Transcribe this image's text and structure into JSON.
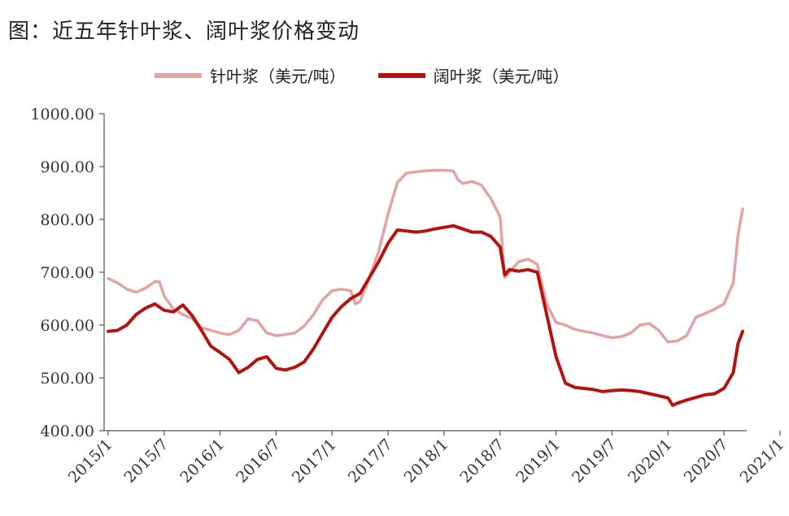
{
  "figure": {
    "title": "图：近五年针叶浆、阔叶浆价格变动"
  },
  "chart_data": {
    "type": "line",
    "title": "图：近五年针叶浆、阔叶浆价格变动",
    "xlabel": "",
    "ylabel": "",
    "ylim": [
      400,
      1000
    ],
    "yticks": [
      "400.00",
      "500.00",
      "600.00",
      "700.00",
      "800.00",
      "900.00",
      "1000.00"
    ],
    "xticks": [
      "2015/1",
      "2015/7",
      "2016/1",
      "2016/7",
      "2017/1",
      "2017/7",
      "2018/1",
      "2018/7",
      "2019/1",
      "2019/7",
      "2020/1",
      "2020/7",
      "2021/1"
    ],
    "legend_position": "top",
    "grid": false,
    "series": [
      {
        "name": "针叶浆（美元/吨）",
        "color": "#e2a3a3",
        "points": [
          [
            0,
            688
          ],
          [
            1,
            680
          ],
          [
            2,
            668
          ],
          [
            3,
            662
          ],
          [
            4,
            670
          ],
          [
            5,
            682
          ],
          [
            5.5,
            682
          ],
          [
            6,
            655
          ],
          [
            7,
            630
          ],
          [
            8,
            620
          ],
          [
            9,
            612
          ],
          [
            10,
            595
          ],
          [
            11,
            590
          ],
          [
            12,
            585
          ],
          [
            13,
            582
          ],
          [
            14,
            590
          ],
          [
            15,
            612
          ],
          [
            16,
            608
          ],
          [
            17,
            585
          ],
          [
            18,
            580
          ],
          [
            19,
            582
          ],
          [
            20,
            585
          ],
          [
            21,
            598
          ],
          [
            22,
            620
          ],
          [
            23,
            648
          ],
          [
            24,
            665
          ],
          [
            25,
            668
          ],
          [
            26,
            665
          ],
          [
            26.5,
            640
          ],
          [
            27,
            645
          ],
          [
            28,
            690
          ],
          [
            29,
            740
          ],
          [
            30,
            810
          ],
          [
            31,
            870
          ],
          [
            32,
            888
          ],
          [
            33,
            890
          ],
          [
            34,
            892
          ],
          [
            35,
            893
          ],
          [
            36,
            893
          ],
          [
            37,
            892
          ],
          [
            37.5,
            875
          ],
          [
            38,
            868
          ],
          [
            39,
            872
          ],
          [
            40,
            865
          ],
          [
            41,
            840
          ],
          [
            42,
            805
          ],
          [
            42.5,
            690
          ],
          [
            43,
            700
          ],
          [
            44,
            720
          ],
          [
            45,
            725
          ],
          [
            46,
            715
          ],
          [
            47,
            640
          ],
          [
            48,
            605
          ],
          [
            49,
            600
          ],
          [
            50,
            592
          ],
          [
            51,
            588
          ],
          [
            52,
            585
          ],
          [
            53,
            580
          ],
          [
            54,
            576
          ],
          [
            55,
            578
          ],
          [
            56,
            585
          ],
          [
            57,
            600
          ],
          [
            58,
            603
          ],
          [
            59,
            590
          ],
          [
            60,
            568
          ],
          [
            61,
            570
          ],
          [
            62,
            580
          ],
          [
            63,
            615
          ],
          [
            64,
            622
          ],
          [
            65,
            630
          ],
          [
            66,
            640
          ],
          [
            67,
            680
          ],
          [
            67.5,
            770
          ],
          [
            68,
            820
          ]
        ]
      },
      {
        "name": "阔叶浆（美元/吨）",
        "color": "#b3140f",
        "points": [
          [
            0,
            588
          ],
          [
            1,
            590
          ],
          [
            2,
            600
          ],
          [
            3,
            620
          ],
          [
            4,
            632
          ],
          [
            5,
            640
          ],
          [
            6,
            628
          ],
          [
            7,
            625
          ],
          [
            8,
            638
          ],
          [
            9,
            618
          ],
          [
            10,
            590
          ],
          [
            11,
            560
          ],
          [
            12,
            548
          ],
          [
            13,
            535
          ],
          [
            14,
            510
          ],
          [
            15,
            520
          ],
          [
            16,
            535
          ],
          [
            17,
            540
          ],
          [
            18,
            518
          ],
          [
            19,
            515
          ],
          [
            20,
            520
          ],
          [
            21,
            530
          ],
          [
            22,
            555
          ],
          [
            23,
            585
          ],
          [
            24,
            615
          ],
          [
            25,
            635
          ],
          [
            26,
            650
          ],
          [
            27,
            660
          ],
          [
            28,
            690
          ],
          [
            29,
            720
          ],
          [
            30,
            755
          ],
          [
            31,
            780
          ],
          [
            32,
            778
          ],
          [
            33,
            776
          ],
          [
            34,
            778
          ],
          [
            35,
            782
          ],
          [
            36,
            785
          ],
          [
            37,
            788
          ],
          [
            38,
            782
          ],
          [
            39,
            776
          ],
          [
            40,
            776
          ],
          [
            41,
            768
          ],
          [
            42,
            748
          ],
          [
            42.5,
            695
          ],
          [
            43,
            705
          ],
          [
            44,
            702
          ],
          [
            45,
            705
          ],
          [
            46,
            700
          ],
          [
            47,
            620
          ],
          [
            48,
            540
          ],
          [
            49,
            490
          ],
          [
            50,
            482
          ],
          [
            51,
            480
          ],
          [
            52,
            478
          ],
          [
            53,
            474
          ],
          [
            54,
            476
          ],
          [
            55,
            477
          ],
          [
            56,
            476
          ],
          [
            57,
            474
          ],
          [
            58,
            470
          ],
          [
            59,
            466
          ],
          [
            60,
            462
          ],
          [
            60.5,
            448
          ],
          [
            61,
            452
          ],
          [
            62,
            458
          ],
          [
            63,
            463
          ],
          [
            64,
            468
          ],
          [
            65,
            470
          ],
          [
            66,
            480
          ],
          [
            67,
            510
          ],
          [
            67.5,
            565
          ],
          [
            68,
            588
          ]
        ]
      }
    ]
  }
}
